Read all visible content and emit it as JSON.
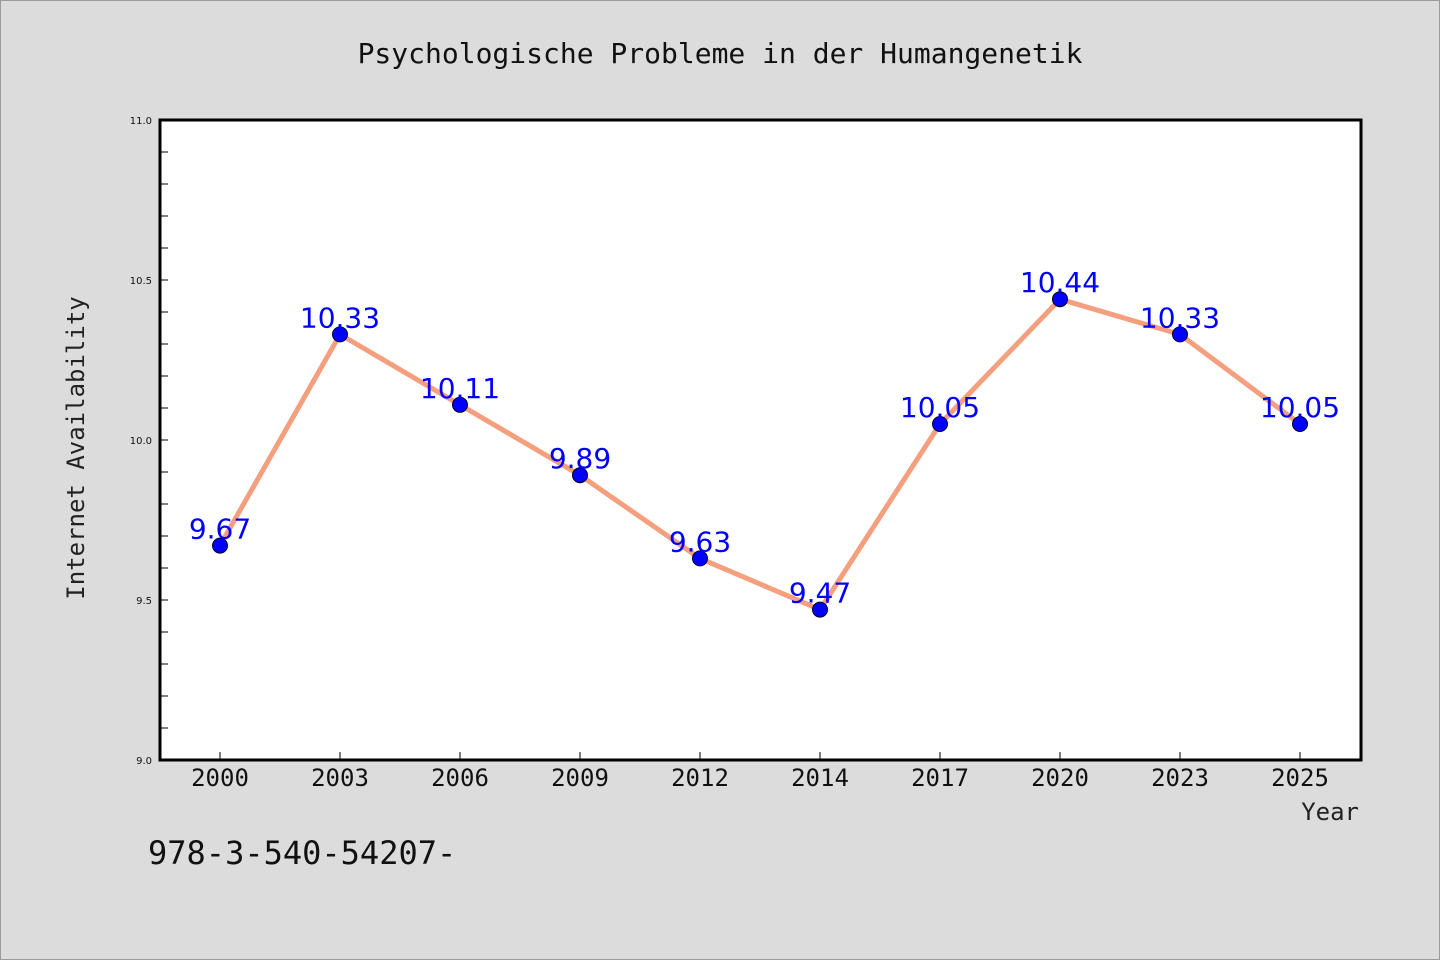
{
  "chart_data": {
    "type": "line",
    "title": "Psychologische Probleme in der Humangenetik",
    "xlabel": "Year",
    "ylabel": "Internet Availability",
    "categories": [
      "2000",
      "2003",
      "2006",
      "2009",
      "2012",
      "2014",
      "2017",
      "2020",
      "2023",
      "2025"
    ],
    "values": [
      9.67,
      10.33,
      10.11,
      9.89,
      9.63,
      9.47,
      10.05,
      10.44,
      10.33,
      10.05
    ],
    "data_labels": [
      "9.67",
      "10.33",
      "10.11",
      "9.89",
      "9.63",
      "9.47",
      "10.05",
      "10.44",
      "10.33",
      "10.05"
    ],
    "ylim": [
      9.0,
      11.0
    ],
    "y_ticks": [
      "9.0",
      "9.5",
      "10.0",
      "10.5",
      "11.0"
    ],
    "grid": false,
    "line_color": "#f4a07e",
    "marker_color": "#0000ff",
    "label_color": "#0000ff"
  },
  "annotation": "978-3-540-54207-"
}
